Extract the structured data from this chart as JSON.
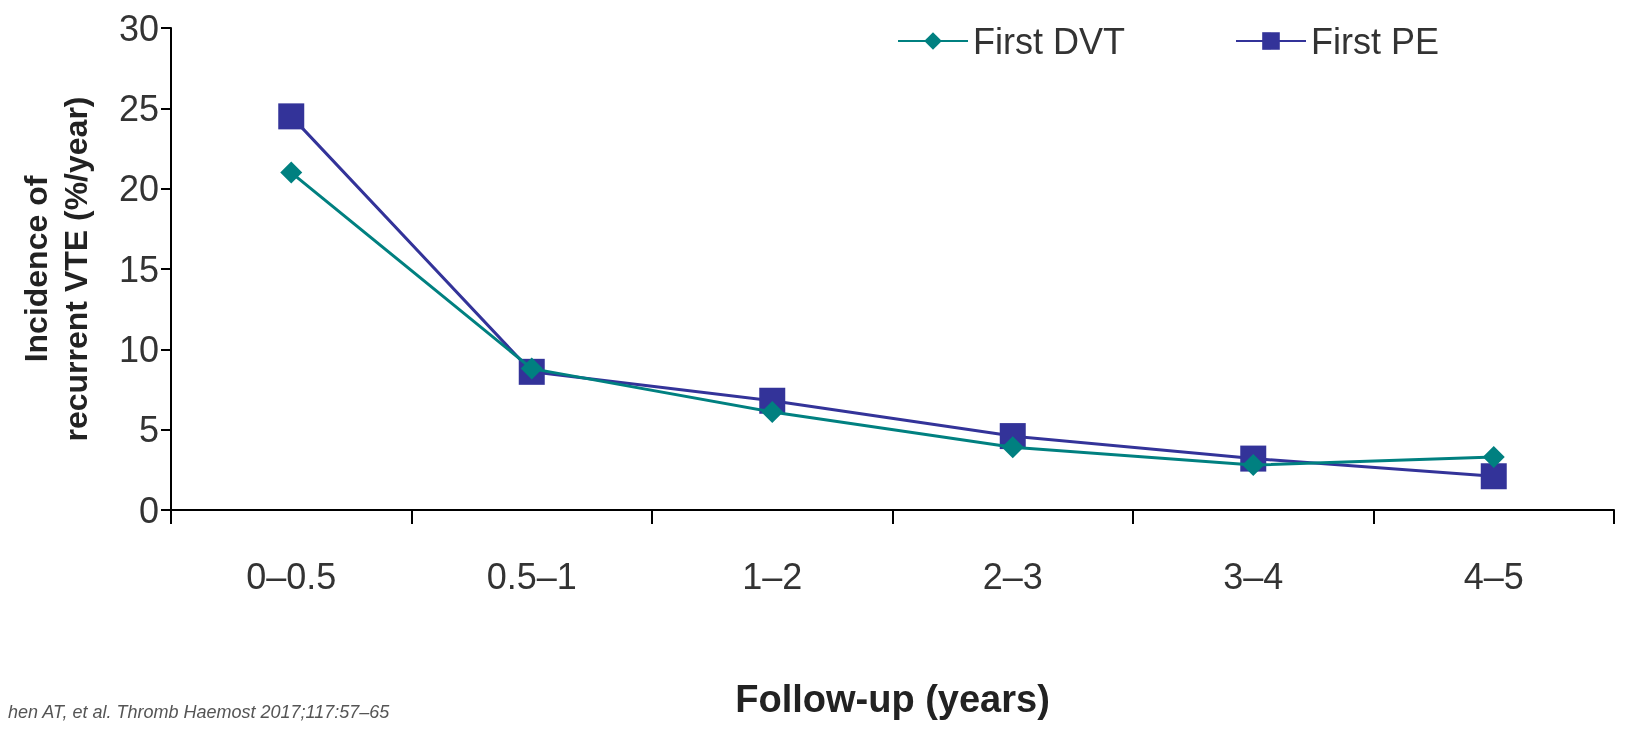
{
  "chart_data": {
    "type": "line",
    "xlabel": "Follow-up (years)",
    "ylabel": "Incidence of\nrecurrent VTE (%/year)",
    "categories": [
      "0–0.5",
      "0.5–1",
      "1–2",
      "2–3",
      "3–4",
      "4–5"
    ],
    "series": [
      {
        "name": "First DVT",
        "color": "#008080",
        "marker": "diamond",
        "values": [
          21.0,
          8.8,
          6.1,
          3.9,
          2.8,
          3.3
        ]
      },
      {
        "name": "First PE",
        "color": "#333399",
        "marker": "square",
        "values": [
          24.5,
          8.6,
          6.8,
          4.6,
          3.2,
          2.1
        ]
      }
    ],
    "ylim": [
      0,
      30
    ],
    "yticks": [
      0,
      5,
      10,
      15,
      20,
      25,
      30
    ],
    "grid": false,
    "legend": "top right",
    "annotations": [
      "hen AT, et al. Thromb Haemost 2017;117:57–65"
    ]
  }
}
